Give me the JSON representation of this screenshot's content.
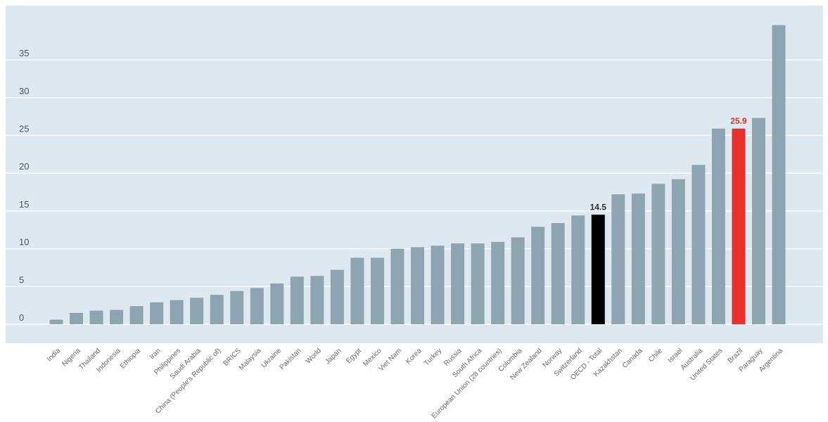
{
  "chart_data": {
    "type": "bar",
    "title": "",
    "xlabel": "",
    "ylabel": "",
    "ylim": [
      0,
      40
    ],
    "yticks": [
      0,
      5,
      10,
      15,
      20,
      25,
      30,
      35
    ],
    "grid": true,
    "categories": [
      "India",
      "Nigeria",
      "Thailand",
      "Indonesia",
      "Ethiopia",
      "Iran",
      "Philippines",
      "Saudi Arabia",
      "China (People's Republic of)",
      "BRICS",
      "Malaysia",
      "Ukraine",
      "Pakistan",
      "World",
      "Japan",
      "Egypt",
      "Mexico",
      "Viet Nam",
      "Korea",
      "Turkey",
      "Russia",
      "South Africa",
      "European Union (28 countries)",
      "Colombia",
      "New Zealand",
      "Norway",
      "Switzerland",
      "OECD - Total",
      "Kazakhstan",
      "Canada",
      "Chile",
      "Israel",
      "Australia",
      "United States",
      "Brazil",
      "Paraguay",
      "Argentina"
    ],
    "values": [
      0.6,
      1.5,
      1.8,
      1.9,
      2.4,
      2.9,
      3.2,
      3.5,
      3.9,
      4.4,
      4.8,
      5.4,
      6.3,
      6.4,
      7.2,
      8.8,
      8.8,
      10.0,
      10.2,
      10.4,
      10.7,
      10.7,
      10.9,
      11.5,
      12.9,
      13.4,
      14.4,
      14.5,
      17.2,
      17.3,
      18.6,
      19.2,
      21.1,
      25.9,
      25.9,
      27.3,
      39.6
    ],
    "highlights": {
      "OECD - Total": {
        "color": "#000000",
        "label": "14.5",
        "label_color": "#333333"
      },
      "Brazil": {
        "color": "#e8312f",
        "label": "25.9",
        "label_color": "#e8312f"
      }
    },
    "colors": {
      "bar": "#8fa4b1",
      "background": "#dde8f0",
      "grid": "#ffffff"
    }
  }
}
